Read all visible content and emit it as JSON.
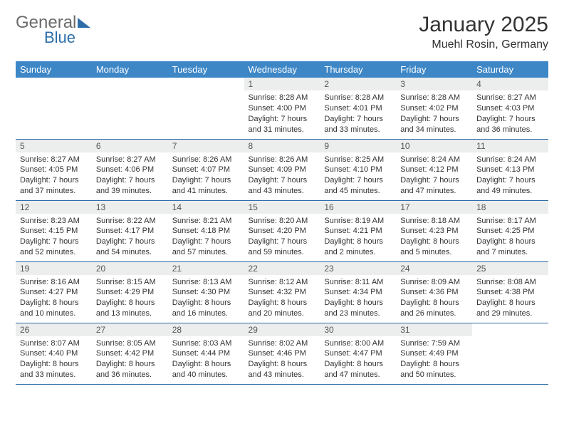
{
  "logo": {
    "general": "General",
    "blue": "Blue"
  },
  "title": "January 2025",
  "location": "Muehl Rosin, Germany",
  "colors": {
    "header_bg": "#3d87c7",
    "daynum_bg": "#eceded",
    "row_border": "#2d6da8",
    "logo_blue": "#2d6da8",
    "logo_gray": "#6b6b6b",
    "text": "#333333",
    "background": "#ffffff"
  },
  "weekdays": [
    "Sunday",
    "Monday",
    "Tuesday",
    "Wednesday",
    "Thursday",
    "Friday",
    "Saturday"
  ],
  "weeks": [
    [
      {
        "n": "",
        "sr": "",
        "ss": "",
        "dl": ""
      },
      {
        "n": "",
        "sr": "",
        "ss": "",
        "dl": ""
      },
      {
        "n": "",
        "sr": "",
        "ss": "",
        "dl": ""
      },
      {
        "n": "1",
        "sr": "Sunrise: 8:28 AM",
        "ss": "Sunset: 4:00 PM",
        "dl": "Daylight: 7 hours and 31 minutes."
      },
      {
        "n": "2",
        "sr": "Sunrise: 8:28 AM",
        "ss": "Sunset: 4:01 PM",
        "dl": "Daylight: 7 hours and 33 minutes."
      },
      {
        "n": "3",
        "sr": "Sunrise: 8:28 AM",
        "ss": "Sunset: 4:02 PM",
        "dl": "Daylight: 7 hours and 34 minutes."
      },
      {
        "n": "4",
        "sr": "Sunrise: 8:27 AM",
        "ss": "Sunset: 4:03 PM",
        "dl": "Daylight: 7 hours and 36 minutes."
      }
    ],
    [
      {
        "n": "5",
        "sr": "Sunrise: 8:27 AM",
        "ss": "Sunset: 4:05 PM",
        "dl": "Daylight: 7 hours and 37 minutes."
      },
      {
        "n": "6",
        "sr": "Sunrise: 8:27 AM",
        "ss": "Sunset: 4:06 PM",
        "dl": "Daylight: 7 hours and 39 minutes."
      },
      {
        "n": "7",
        "sr": "Sunrise: 8:26 AM",
        "ss": "Sunset: 4:07 PM",
        "dl": "Daylight: 7 hours and 41 minutes."
      },
      {
        "n": "8",
        "sr": "Sunrise: 8:26 AM",
        "ss": "Sunset: 4:09 PM",
        "dl": "Daylight: 7 hours and 43 minutes."
      },
      {
        "n": "9",
        "sr": "Sunrise: 8:25 AM",
        "ss": "Sunset: 4:10 PM",
        "dl": "Daylight: 7 hours and 45 minutes."
      },
      {
        "n": "10",
        "sr": "Sunrise: 8:24 AM",
        "ss": "Sunset: 4:12 PM",
        "dl": "Daylight: 7 hours and 47 minutes."
      },
      {
        "n": "11",
        "sr": "Sunrise: 8:24 AM",
        "ss": "Sunset: 4:13 PM",
        "dl": "Daylight: 7 hours and 49 minutes."
      }
    ],
    [
      {
        "n": "12",
        "sr": "Sunrise: 8:23 AM",
        "ss": "Sunset: 4:15 PM",
        "dl": "Daylight: 7 hours and 52 minutes."
      },
      {
        "n": "13",
        "sr": "Sunrise: 8:22 AM",
        "ss": "Sunset: 4:17 PM",
        "dl": "Daylight: 7 hours and 54 minutes."
      },
      {
        "n": "14",
        "sr": "Sunrise: 8:21 AM",
        "ss": "Sunset: 4:18 PM",
        "dl": "Daylight: 7 hours and 57 minutes."
      },
      {
        "n": "15",
        "sr": "Sunrise: 8:20 AM",
        "ss": "Sunset: 4:20 PM",
        "dl": "Daylight: 7 hours and 59 minutes."
      },
      {
        "n": "16",
        "sr": "Sunrise: 8:19 AM",
        "ss": "Sunset: 4:21 PM",
        "dl": "Daylight: 8 hours and 2 minutes."
      },
      {
        "n": "17",
        "sr": "Sunrise: 8:18 AM",
        "ss": "Sunset: 4:23 PM",
        "dl": "Daylight: 8 hours and 5 minutes."
      },
      {
        "n": "18",
        "sr": "Sunrise: 8:17 AM",
        "ss": "Sunset: 4:25 PM",
        "dl": "Daylight: 8 hours and 7 minutes."
      }
    ],
    [
      {
        "n": "19",
        "sr": "Sunrise: 8:16 AM",
        "ss": "Sunset: 4:27 PM",
        "dl": "Daylight: 8 hours and 10 minutes."
      },
      {
        "n": "20",
        "sr": "Sunrise: 8:15 AM",
        "ss": "Sunset: 4:29 PM",
        "dl": "Daylight: 8 hours and 13 minutes."
      },
      {
        "n": "21",
        "sr": "Sunrise: 8:13 AM",
        "ss": "Sunset: 4:30 PM",
        "dl": "Daylight: 8 hours and 16 minutes."
      },
      {
        "n": "22",
        "sr": "Sunrise: 8:12 AM",
        "ss": "Sunset: 4:32 PM",
        "dl": "Daylight: 8 hours and 20 minutes."
      },
      {
        "n": "23",
        "sr": "Sunrise: 8:11 AM",
        "ss": "Sunset: 4:34 PM",
        "dl": "Daylight: 8 hours and 23 minutes."
      },
      {
        "n": "24",
        "sr": "Sunrise: 8:09 AM",
        "ss": "Sunset: 4:36 PM",
        "dl": "Daylight: 8 hours and 26 minutes."
      },
      {
        "n": "25",
        "sr": "Sunrise: 8:08 AM",
        "ss": "Sunset: 4:38 PM",
        "dl": "Daylight: 8 hours and 29 minutes."
      }
    ],
    [
      {
        "n": "26",
        "sr": "Sunrise: 8:07 AM",
        "ss": "Sunset: 4:40 PM",
        "dl": "Daylight: 8 hours and 33 minutes."
      },
      {
        "n": "27",
        "sr": "Sunrise: 8:05 AM",
        "ss": "Sunset: 4:42 PM",
        "dl": "Daylight: 8 hours and 36 minutes."
      },
      {
        "n": "28",
        "sr": "Sunrise: 8:03 AM",
        "ss": "Sunset: 4:44 PM",
        "dl": "Daylight: 8 hours and 40 minutes."
      },
      {
        "n": "29",
        "sr": "Sunrise: 8:02 AM",
        "ss": "Sunset: 4:46 PM",
        "dl": "Daylight: 8 hours and 43 minutes."
      },
      {
        "n": "30",
        "sr": "Sunrise: 8:00 AM",
        "ss": "Sunset: 4:47 PM",
        "dl": "Daylight: 8 hours and 47 minutes."
      },
      {
        "n": "31",
        "sr": "Sunrise: 7:59 AM",
        "ss": "Sunset: 4:49 PM",
        "dl": "Daylight: 8 hours and 50 minutes."
      },
      {
        "n": "",
        "sr": "",
        "ss": "",
        "dl": ""
      }
    ]
  ]
}
